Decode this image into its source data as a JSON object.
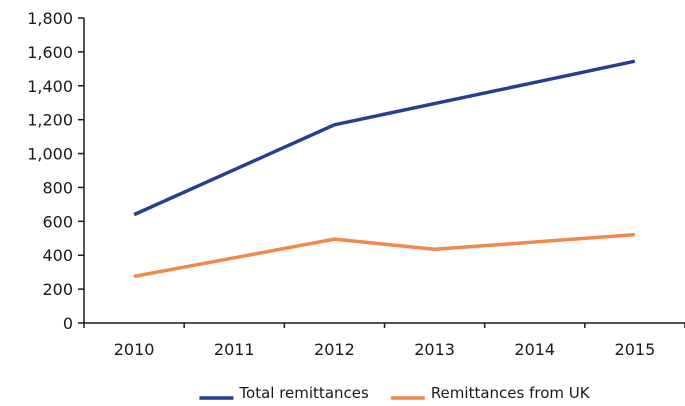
{
  "chart_data": {
    "type": "line",
    "x": [
      "2010",
      "2011",
      "2012",
      "2013",
      "2014",
      "2015"
    ],
    "ylim": [
      0,
      1800
    ],
    "yticks": [
      "0",
      "200",
      "400",
      "600",
      "800",
      "1,000",
      "1,200",
      "1,400",
      "1,600",
      "1,800"
    ],
    "ytick_values": [
      0,
      200,
      400,
      600,
      800,
      1000,
      1200,
      1400,
      1600,
      1800
    ],
    "grid": false,
    "legend_position": "bottom",
    "series": [
      {
        "name": "Total remittances",
        "color": "#283f8e",
        "values": [
          640,
          905,
          1170,
          1295,
          1420,
          1545
        ]
      },
      {
        "name": "Remittances from UK",
        "color": "#ef8a4c",
        "values": [
          275,
          385,
          495,
          435,
          478,
          522
        ]
      }
    ]
  }
}
